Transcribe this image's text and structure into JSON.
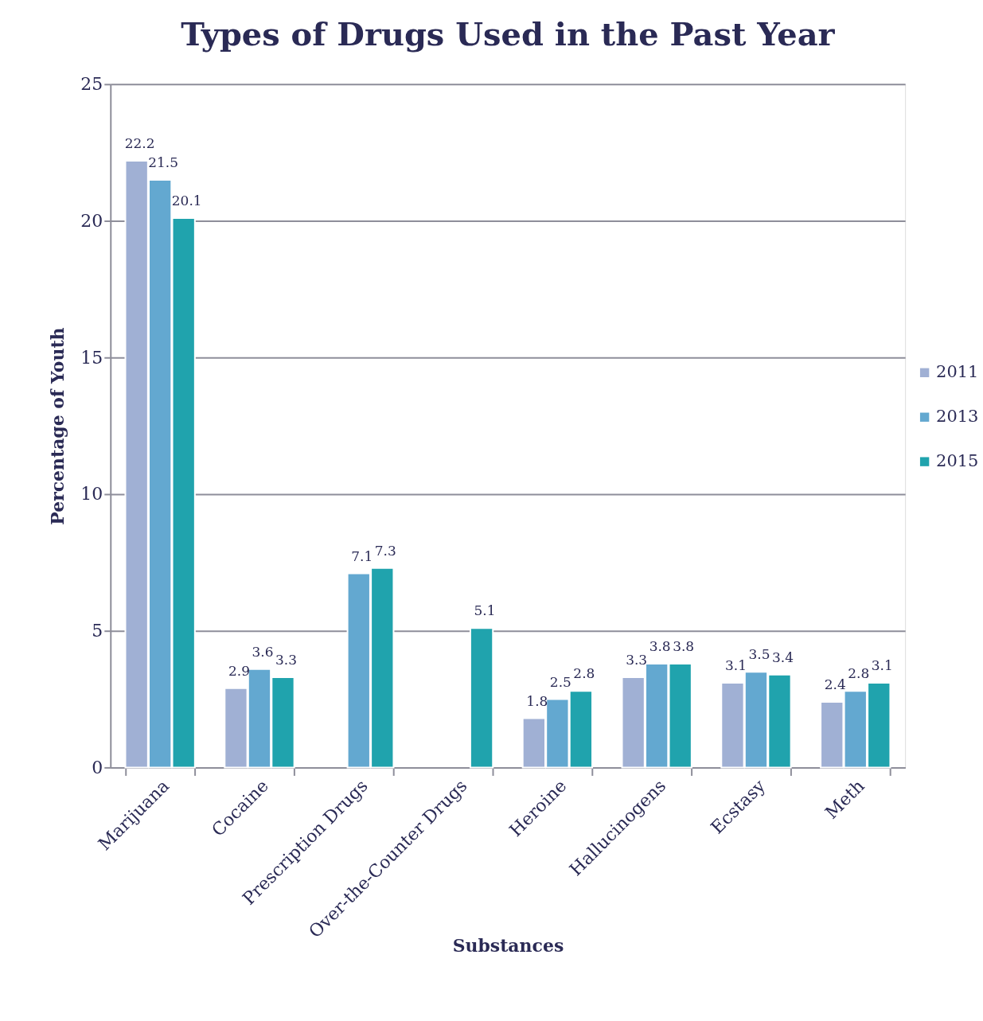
{
  "chart_data": {
    "type": "bar",
    "title": "Types of Drugs Used in the Past Year",
    "xlabel": "Substances",
    "ylabel": "Percentage of Youth",
    "categories": [
      "Marijuana",
      "Cocaine",
      "Prescription Drugs",
      "Over-the-Counter Drugs",
      "Heroine",
      "Hallucinogens",
      "Ecstasy",
      "Meth"
    ],
    "series": [
      {
        "name": "2011",
        "color": "#a0b0d4",
        "values": [
          22.2,
          2.9,
          null,
          null,
          1.8,
          3.3,
          3.1,
          2.4
        ]
      },
      {
        "name": "2013",
        "color": "#63a8d0",
        "values": [
          21.5,
          3.6,
          7.1,
          null,
          2.5,
          3.8,
          3.5,
          2.8
        ]
      },
      {
        "name": "2015",
        "color": "#20a3ad",
        "values": [
          20.1,
          3.3,
          7.3,
          5.1,
          2.8,
          3.8,
          3.4,
          3.1
        ]
      }
    ],
    "ylim": [
      0,
      25
    ],
    "yticks": [
      0,
      5,
      10,
      15,
      20,
      25
    ],
    "grid": "y",
    "legend": "right",
    "data_labels": true
  }
}
